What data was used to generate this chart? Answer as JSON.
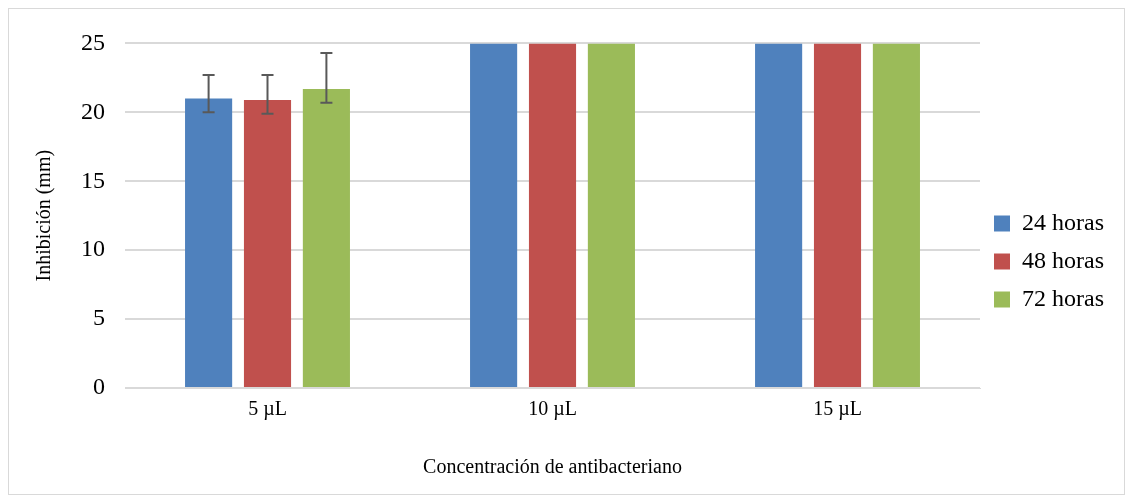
{
  "chart_data": {
    "type": "bar",
    "xlabel": "Concentración de antibacteriano",
    "ylabel": "Inhibición (mm)",
    "categories": [
      "5 µL",
      "10 µL",
      "15 µL"
    ],
    "series": [
      {
        "name": "24 horas",
        "color": "#4f81bd",
        "values": [
          21.0,
          25,
          25
        ],
        "errors": [
          [
            20.0,
            22.7
          ],
          null,
          null
        ]
      },
      {
        "name": "48 horas",
        "color": "#c0504d",
        "values": [
          20.9,
          25,
          25
        ],
        "errors": [
          [
            19.9,
            22.7
          ],
          null,
          null
        ]
      },
      {
        "name": "72 horas",
        "color": "#9bbb59",
        "values": [
          21.7,
          25,
          25
        ],
        "errors": [
          [
            20.7,
            24.3
          ],
          null,
          null
        ]
      }
    ],
    "ylim": [
      0,
      25
    ],
    "yticks": [
      0,
      5,
      10,
      15,
      20,
      25
    ],
    "grid": "y",
    "legend": "right"
  }
}
